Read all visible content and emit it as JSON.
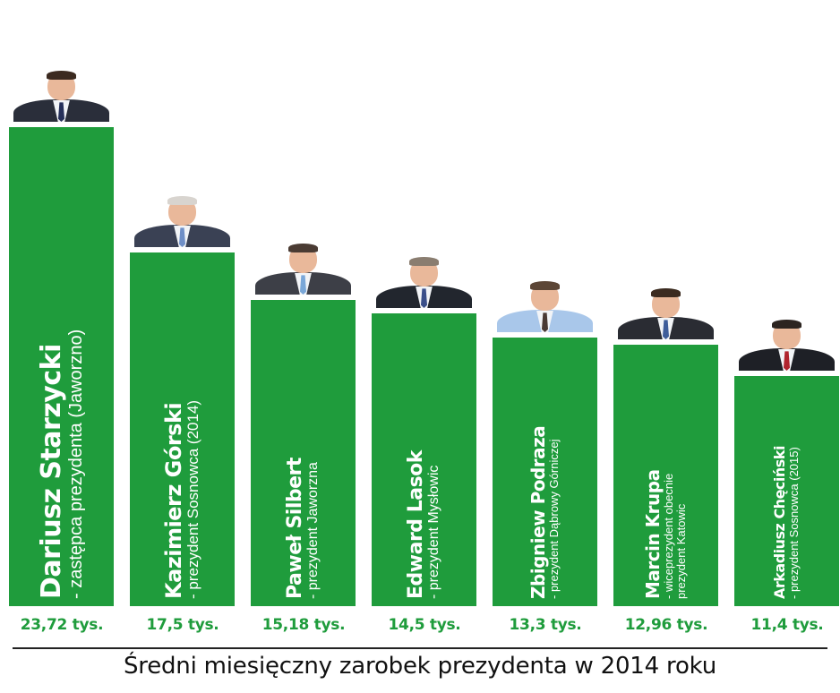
{
  "chart_data": {
    "type": "bar",
    "title": "Średni miesięczny zarobek prezydenta w 2014 roku",
    "categories": [
      "Dariusz Starzycki",
      "Kazimierz Górski",
      "Paweł Silbert",
      "Edward Lasok",
      "Zbigniew Podraza",
      "Marcin Krupa",
      "Arkadiusz Chęciński"
    ],
    "roles": [
      [
        "- zastępca prezydenta (Jaworzno)"
      ],
      [
        "- prezydent Sosnowca (2014)"
      ],
      [
        "- prezydent Jaworzna"
      ],
      [
        "- prezydent Mysłowic"
      ],
      [
        "- prezydent Dąbrowy Górniczej"
      ],
      [
        "- wiceprezydent obecnie",
        "prezydent Katowic"
      ],
      [
        "- prezydent Sosnowca (2015)"
      ]
    ],
    "values": [
      23.72,
      17.5,
      15.18,
      14.5,
      13.3,
      12.96,
      11.4
    ],
    "value_labels": [
      "23,72 tys.",
      "17,5 tys.",
      "15,18 tys.",
      "14,5 tys.",
      "13,3 tys.",
      "12,96 tys.",
      "11,4 tys."
    ],
    "bar_color": "#1f9c3c",
    "value_color": "#1f9c3c",
    "xlabel": "",
    "ylabel": "",
    "ylim": [
      0,
      23.72
    ],
    "grid": false,
    "legend": "none"
  },
  "portraits": [
    {
      "icon": "person-photo",
      "bg": "#ffffff",
      "suit": "#2a2e3a",
      "tie": "#26305a",
      "hair": "#3b2a20"
    },
    {
      "icon": "person-photo",
      "bg": "#ffffff",
      "suit": "#3a4154",
      "tie": "#6f8fc7",
      "hair": "#d8d4cf"
    },
    {
      "icon": "person-photo",
      "bg": "#ffffff",
      "suit": "#3d3f47",
      "tie": "#7aa7d8",
      "hair": "#4a3b33"
    },
    {
      "icon": "person-photo",
      "bg": "#ffffff",
      "suit": "#22262e",
      "tie": "#3a4f8a",
      "hair": "#8a7d70"
    },
    {
      "icon": "person-photo",
      "bg": "#ffffff",
      "suit": "#a9c7ea",
      "tie": "#4a3a34",
      "hair": "#5c4636"
    },
    {
      "icon": "person-photo",
      "bg": "#ffffff",
      "suit": "#2a2c33",
      "tie": "#3e5d9a",
      "hair": "#3b2b20"
    },
    {
      "icon": "person-photo",
      "bg": "#ffffff",
      "suit": "#1e2026",
      "tie": "#b0242e",
      "hair": "#2c2420"
    }
  ]
}
